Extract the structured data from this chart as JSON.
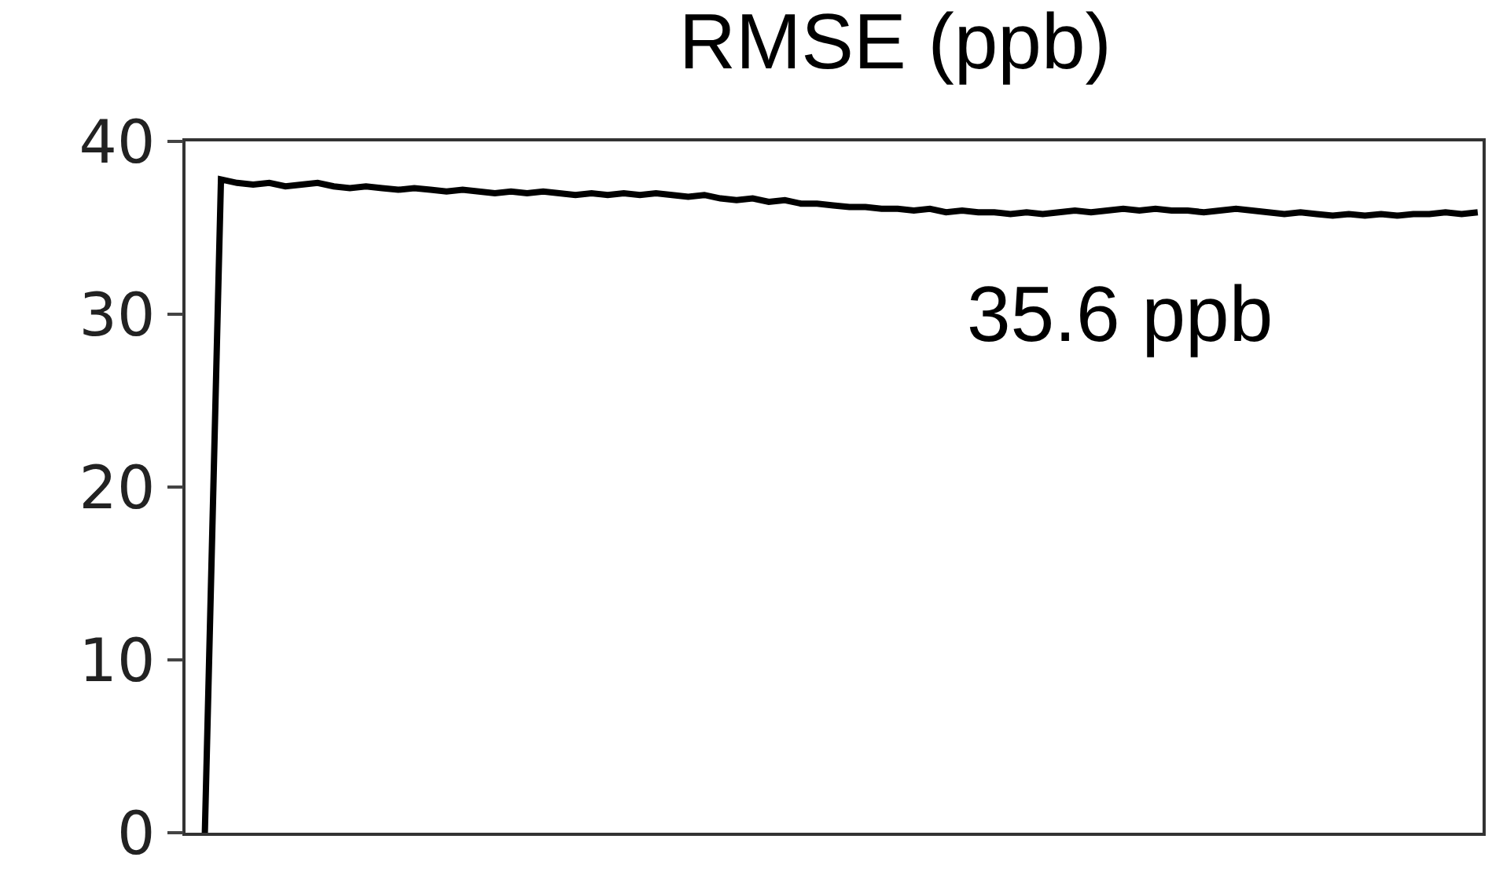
{
  "chart_data": {
    "type": "line",
    "title": "RMSE (ppb)",
    "categories": [
      null,
      null,
      null,
      null,
      null,
      null,
      null,
      null,
      null,
      null,
      null,
      null,
      null,
      null,
      null,
      null,
      null,
      null,
      null,
      null,
      null,
      null,
      null,
      null,
      null,
      null,
      null,
      null,
      null,
      null,
      null,
      null,
      null,
      null,
      null,
      null,
      null,
      null,
      null,
      null,
      null,
      null,
      null,
      null,
      null,
      null,
      null,
      null,
      null,
      null,
      null,
      null,
      null,
      null,
      null,
      null,
      null,
      null,
      null,
      null,
      null,
      null,
      null,
      null,
      null,
      null,
      null,
      null,
      null,
      null,
      null,
      null,
      null,
      null,
      null,
      null,
      null,
      null,
      null,
      null
    ],
    "series": [
      {
        "color": "#000000",
        "values": [
          0,
          37.8,
          37.6,
          37.5,
          37.6,
          37.4,
          37.5,
          37.6,
          37.4,
          37.3,
          37.4,
          37.3,
          37.2,
          37.3,
          37.2,
          37.1,
          37.2,
          37.1,
          37.0,
          37.1,
          37.0,
          37.1,
          37.0,
          36.9,
          37.0,
          36.9,
          37.0,
          36.9,
          37.0,
          36.9,
          36.8,
          36.9,
          36.7,
          36.6,
          36.7,
          36.5,
          36.6,
          36.4,
          36.4,
          36.3,
          36.2,
          36.2,
          36.1,
          36.1,
          36.0,
          36.1,
          35.9,
          36.0,
          35.9,
          35.9,
          35.8,
          35.9,
          35.8,
          35.9,
          36.0,
          35.9,
          36.0,
          36.1,
          36.0,
          36.1,
          36.0,
          36.0,
          35.9,
          36.0,
          36.1,
          36.0,
          35.9,
          35.8,
          35.9,
          35.8,
          35.7,
          35.8,
          35.7,
          35.8,
          35.7,
          35.8,
          35.8,
          35.9,
          35.8,
          35.9
        ]
      }
    ],
    "ylim": [
      0,
      40
    ],
    "yticks": [
      0,
      10,
      20,
      30,
      40
    ],
    "grid": false,
    "legend": false,
    "marker": "none",
    "line_style": "solid",
    "tick_labels": "y",
    "annotations": [
      "35.6 ppb"
    ]
  }
}
